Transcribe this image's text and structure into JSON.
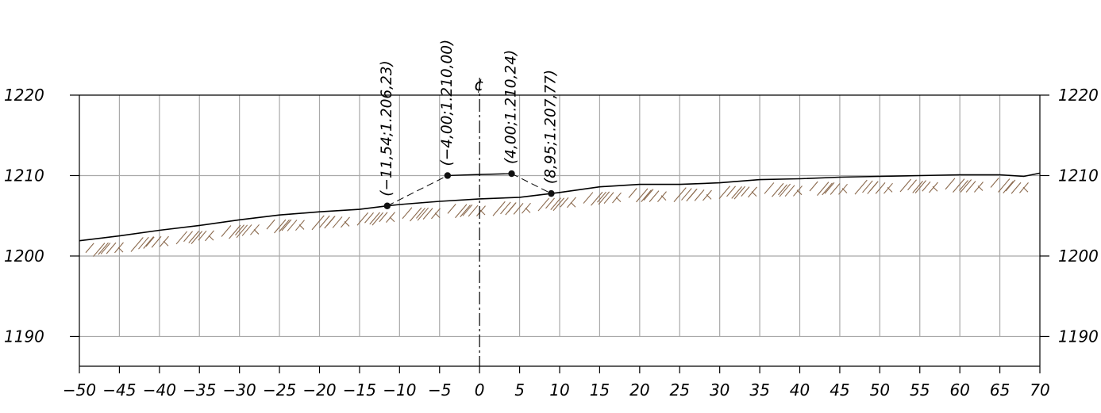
{
  "chart_data": {
    "type": "line",
    "title": "",
    "xlabel": "",
    "ylabel": "",
    "xlim": [
      -50,
      70
    ],
    "ylim": [
      1186.3,
      1220
    ],
    "grid": true,
    "x_ticks": [
      "−50",
      "−45",
      "−40",
      "−35",
      "−30",
      "−25",
      "−20",
      "−15",
      "−10",
      "−5",
      "0",
      "5",
      "10",
      "15",
      "20",
      "25",
      "30",
      "35",
      "40",
      "45",
      "50",
      "55",
      "60",
      "65",
      "70"
    ],
    "y_ticks": [
      "1190",
      "1200",
      "1210",
      "1220"
    ],
    "centerline_label": "¢",
    "series": [
      {
        "role": "ground-profile",
        "x": [
          -50,
          -45,
          -40,
          -35,
          -30,
          -25,
          -20,
          -15,
          -11.54,
          -10,
          -5,
          0,
          5,
          10,
          15,
          20,
          25,
          30,
          35,
          40,
          45,
          50,
          55,
          60,
          65,
          68,
          70
        ],
        "y": [
          1201.9,
          1202.5,
          1203.2,
          1203.8,
          1204.5,
          1205.1,
          1205.5,
          1205.8,
          1206.23,
          1206.4,
          1206.8,
          1207.1,
          1207.3,
          1207.9,
          1208.6,
          1208.9,
          1208.9,
          1209.1,
          1209.5,
          1209.6,
          1209.8,
          1209.9,
          1210.0,
          1210.1,
          1210.1,
          1209.9,
          1210.3
        ]
      },
      {
        "role": "design-section",
        "x": [
          -11.54,
          -4.0,
          4.0,
          8.95
        ],
        "y": [
          1206.23,
          1210.0,
          1210.24,
          1207.77
        ]
      }
    ],
    "points": [
      {
        "x": -11.54,
        "y": 1206.23,
        "label": "(−11,54;1.206,23)"
      },
      {
        "x": -4.0,
        "y": 1210.0,
        "label": "(−4,00;1.210,00)"
      },
      {
        "x": 4.0,
        "y": 1210.24,
        "label": "(4,00;1.210,24)"
      },
      {
        "x": 8.95,
        "y": 1207.77,
        "label": "(8,95;1.207,77)"
      }
    ]
  }
}
